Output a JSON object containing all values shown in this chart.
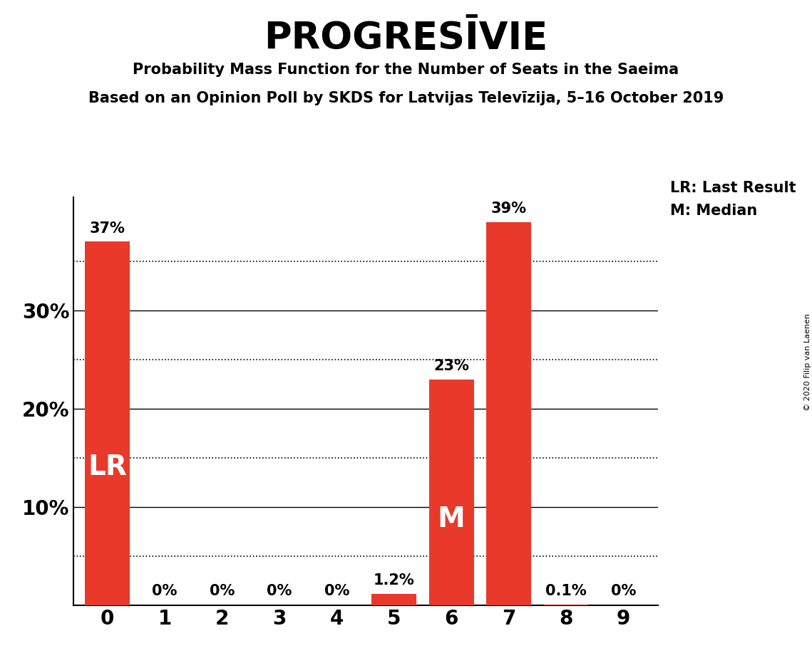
{
  "title": "PROGRESĪVIE",
  "subtitle1": "Probability Mass Function for the Number of Seats in the Saeima",
  "subtitle2": "Based on an Opinion Poll by SKDS for Latvijas Televīzija, 5–16 October 2019",
  "copyright": "© 2020 Filip van Laenen",
  "categories": [
    0,
    1,
    2,
    3,
    4,
    5,
    6,
    7,
    8,
    9
  ],
  "values": [
    0.37,
    0.0,
    0.0,
    0.0,
    0.0,
    0.012,
    0.23,
    0.39,
    0.001,
    0.0
  ],
  "labels": [
    "37%",
    "0%",
    "0%",
    "0%",
    "0%",
    "1.2%",
    "23%",
    "39%",
    "0.1%",
    "0%"
  ],
  "bar_color": "#e8392a",
  "background_color": "#ffffff",
  "ylim": [
    0,
    0.415
  ],
  "lr_bar": 0,
  "median_bar": 6,
  "lr_label": "LR",
  "median_label": "M",
  "legend_lr": "LR: Last Result",
  "legend_m": "M: Median",
  "solid_grid": [
    0.1,
    0.2,
    0.3
  ],
  "dotted_grid": [
    0.05,
    0.15,
    0.25,
    0.35
  ],
  "ytick_vals": [
    0.1,
    0.2,
    0.3
  ],
  "ytick_labels": [
    "10%",
    "20%",
    "30%"
  ]
}
